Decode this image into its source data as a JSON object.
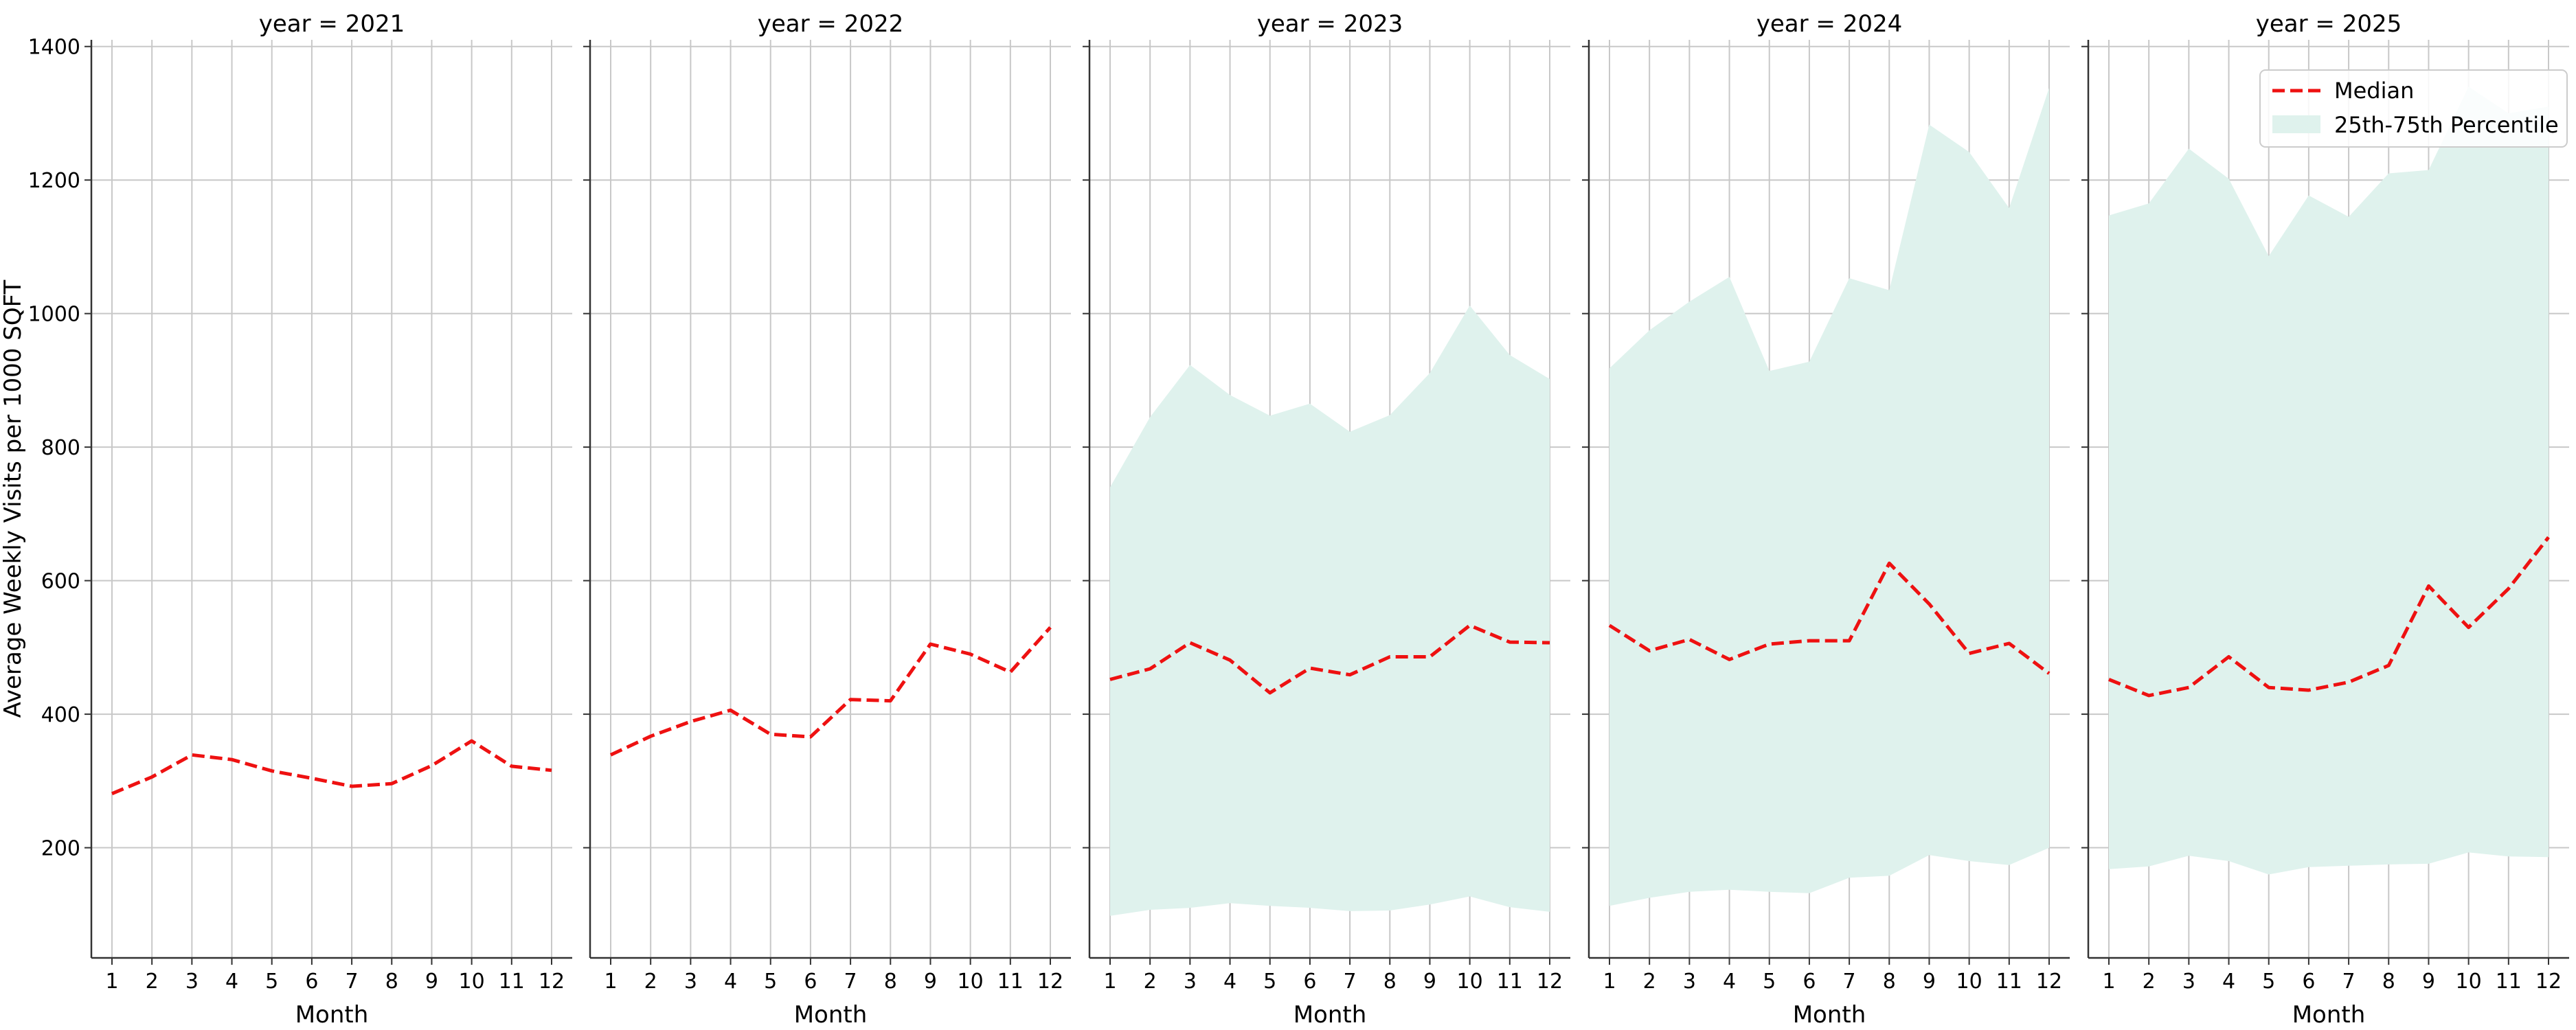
{
  "chart_data": {
    "type": "line",
    "ylabel": "Average Weekly Visits per 1000 SQFT",
    "xlabel": "Month",
    "x": [
      1,
      2,
      3,
      4,
      5,
      6,
      7,
      8,
      9,
      10,
      11,
      12
    ],
    "ylim": [
      35,
      1410
    ],
    "yticks": [
      200,
      400,
      600,
      800,
      1000,
      1200,
      1400
    ],
    "grid": true,
    "legend": {
      "placement": "top-right",
      "entries": [
        "Median",
        "25th-75th Percentile"
      ]
    },
    "colors": {
      "median": "#ee1111",
      "band": "#dff2ed",
      "grid": "#c8c8c8"
    },
    "panels": [
      {
        "title": "year = 2021",
        "median": [
          281,
          306,
          339,
          332,
          315,
          304,
          292,
          296,
          323,
          360,
          322,
          316
        ],
        "band": null
      },
      {
        "title": "year = 2022",
        "median": [
          339,
          367,
          389,
          406,
          370,
          366,
          422,
          420,
          505,
          490,
          463,
          530
        ],
        "band": null
      },
      {
        "title": "year = 2023",
        "median": [
          452,
          468,
          507,
          481,
          432,
          469,
          459,
          486,
          486,
          533,
          508,
          507
        ],
        "band": {
          "low": [
            98,
            107,
            110,
            117,
            113,
            110,
            105,
            106,
            115,
            127,
            111,
            104
          ],
          "high": [
            740,
            845,
            923,
            878,
            847,
            865,
            823,
            848,
            911,
            1012,
            938,
            902
          ]
        }
      },
      {
        "title": "year = 2024",
        "median": [
          533,
          495,
          512,
          482,
          505,
          510,
          510,
          626,
          565,
          491,
          506,
          461
        ],
        "band": {
          "low": [
            113,
            125,
            134,
            137,
            134,
            132,
            155,
            158,
            189,
            180,
            174,
            200
          ],
          "high": [
            918,
            975,
            1018,
            1055,
            914,
            928,
            1053,
            1035,
            1283,
            1242,
            1158,
            1338
          ]
        }
      },
      {
        "title": "year = 2025",
        "median": [
          452,
          428,
          440,
          486,
          440,
          436,
          448,
          473,
          592,
          530,
          588,
          665
        ],
        "band": {
          "low": [
            168,
            172,
            188,
            180,
            160,
            171,
            173,
            175,
            176,
            193,
            187,
            186
          ],
          "high": [
            1147,
            1165,
            1247,
            1202,
            1086,
            1177,
            1145,
            1210,
            1215,
            1340,
            1300,
            1310
          ]
        }
      }
    ]
  }
}
